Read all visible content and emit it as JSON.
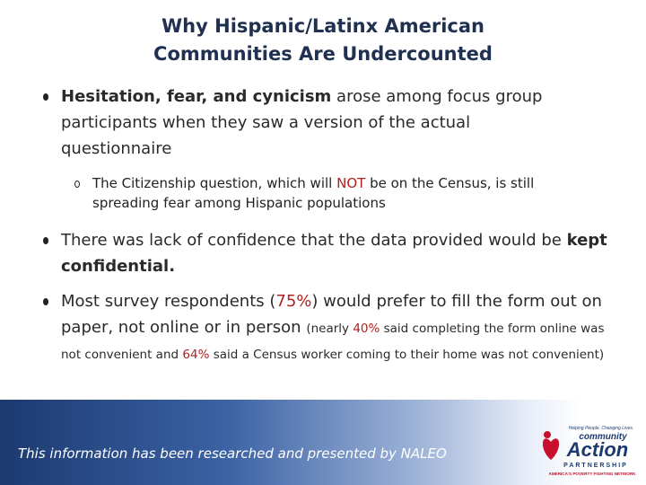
{
  "title": {
    "lines": [
      "Why Hispanic/Latinx American",
      "Communities Are Undercounted"
    ]
  },
  "bullets": [
    {
      "segments": [
        "Hesitation, fear, and cynicism",
        " arose among focus group participants when they saw a version of the actual questionnaire"
      ],
      "sub": [
        "The Citizenship question, which will ",
        "NOT",
        " be on the Census, is still spreading fear among Hispanic populations"
      ]
    },
    {
      "segments": [
        "There was lack of confidence that the data provided would be ",
        "kept confidential."
      ]
    },
    {
      "segments": [
        "Most survey respondents (",
        "75%",
        ") would prefer to fill the form out on paper, not online or in person ",
        "(nearly ",
        "40%",
        " said completing the form online was not convenient and ",
        "64%",
        " said a Census worker coming to their home was not convenient)"
      ]
    }
  ],
  "footer": {
    "text": "This information has been researched and presented by NALEO"
  },
  "logo": {
    "tagline": "Helping People. Changing Lives.",
    "word1": "community",
    "word2": "Action",
    "word3": "PARTNERSHIP",
    "motto": "AMERICA'S POVERTY FIGHTING NETWORK"
  }
}
